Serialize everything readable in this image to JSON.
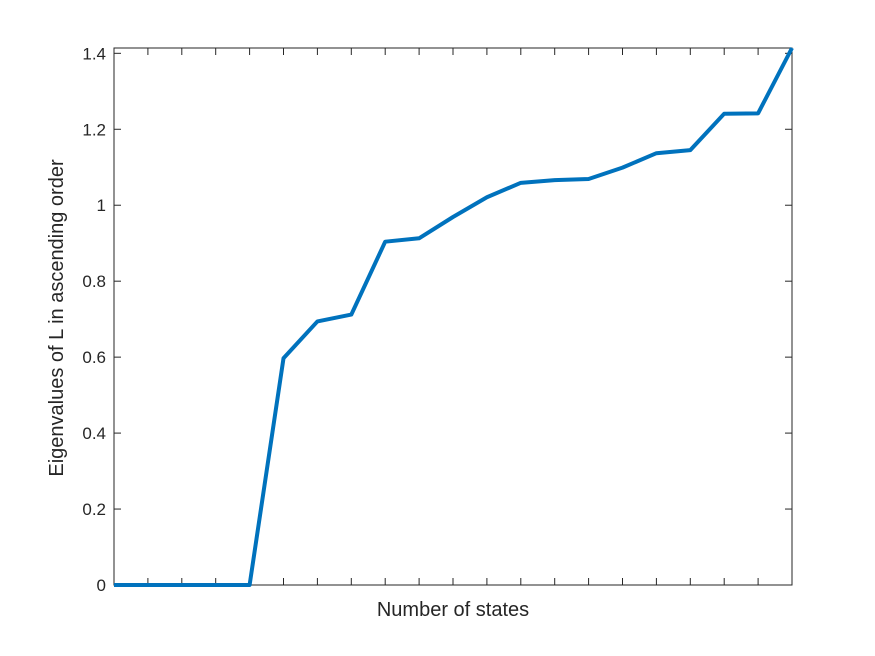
{
  "chart_data": {
    "type": "line",
    "title": "",
    "xlabel": "Number of states",
    "ylabel": "Eigenvalues of L in ascending order",
    "xlim": [
      1,
      21
    ],
    "ylim": [
      0,
      1.414
    ],
    "xticks": [
      2,
      3,
      4,
      5,
      6,
      7,
      8,
      9,
      10,
      11,
      12,
      13,
      14,
      15,
      16,
      17,
      18,
      19,
      20
    ],
    "yticks": [
      0,
      0.2,
      0.4,
      0.6,
      0.8,
      1,
      1.2,
      1.4
    ],
    "ytick_labels": [
      "0",
      "0.2",
      "0.4",
      "0.6",
      "0.8",
      "1",
      "1.2",
      "1.4"
    ],
    "grid": false,
    "line_color": "#0072BD",
    "series": [
      {
        "x": [
          1,
          2,
          3,
          4,
          5,
          6,
          7,
          8,
          9,
          10,
          11,
          12,
          13,
          14,
          15,
          16,
          17,
          18,
          19,
          20,
          21
        ],
        "values": [
          0,
          0,
          0,
          0,
          0,
          0.597,
          0.694,
          0.712,
          0.904,
          0.913,
          0.969,
          1.021,
          1.059,
          1.066,
          1.069,
          1.099,
          1.137,
          1.145,
          1.241,
          1.242,
          1.414
        ]
      }
    ]
  }
}
